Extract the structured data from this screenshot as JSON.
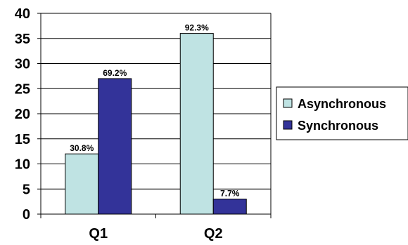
{
  "chart_data": {
    "type": "bar",
    "title": "",
    "xlabel": "",
    "ylabel": "",
    "categories": [
      "Q1",
      "Q2"
    ],
    "ylim": [
      0,
      40
    ],
    "yticks": [
      0,
      5,
      10,
      15,
      20,
      25,
      30,
      35,
      40
    ],
    "grid": true,
    "legend_position": "right",
    "series": [
      {
        "name": "Asynchronous",
        "color": "#bfe3e3",
        "values": [
          12,
          36
        ],
        "labels": [
          "30.8%",
          "92.3%"
        ]
      },
      {
        "name": "Synchronous",
        "color": "#333399",
        "values": [
          27,
          3
        ],
        "labels": [
          "69.2%",
          "7.7%"
        ]
      }
    ]
  }
}
